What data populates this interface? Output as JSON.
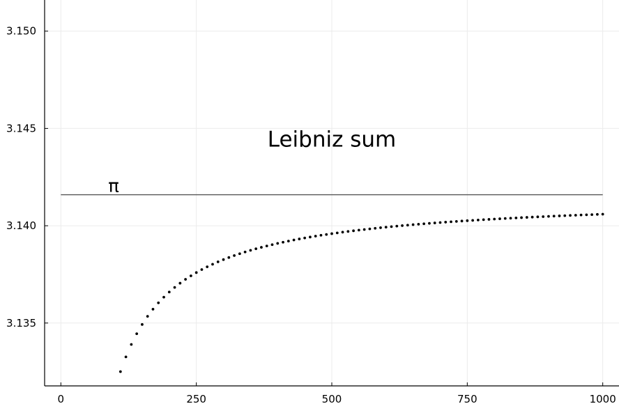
{
  "chart_data": {
    "type": "scatter",
    "title": "",
    "xlabel": "",
    "ylabel": "",
    "xlim": [
      -30,
      1030
    ],
    "ylim": [
      3.13177,
      3.1516
    ],
    "grid": true,
    "legend": "none",
    "x_ticks": [
      {
        "value": 0,
        "label": "0"
      },
      {
        "value": 250,
        "label": "250"
      },
      {
        "value": 500,
        "label": "500"
      },
      {
        "value": 750,
        "label": "750"
      },
      {
        "value": 1000,
        "label": "1000"
      }
    ],
    "y_ticks": [
      {
        "value": 3.135,
        "label": "3.135"
      },
      {
        "value": 3.14,
        "label": "3.140"
      },
      {
        "value": 3.145,
        "label": "3.145"
      },
      {
        "value": 3.15,
        "label": "3.150"
      }
    ],
    "reference_line": {
      "y": 3.141593,
      "x_range": [
        0,
        1000
      ],
      "label": "π",
      "label_x": 100
    },
    "annotations": [
      {
        "text": "Leibniz sum",
        "x": 500,
        "y": 3.1445
      }
    ],
    "series": [
      {
        "marker_color": "#000000",
        "x_start": 100,
        "x_end": 1000,
        "x_step": 10,
        "formula": "4 * sum_{k=0}^{n-1} (-1)^k / (2k+1); points alternate above and below pi"
      }
    ]
  }
}
